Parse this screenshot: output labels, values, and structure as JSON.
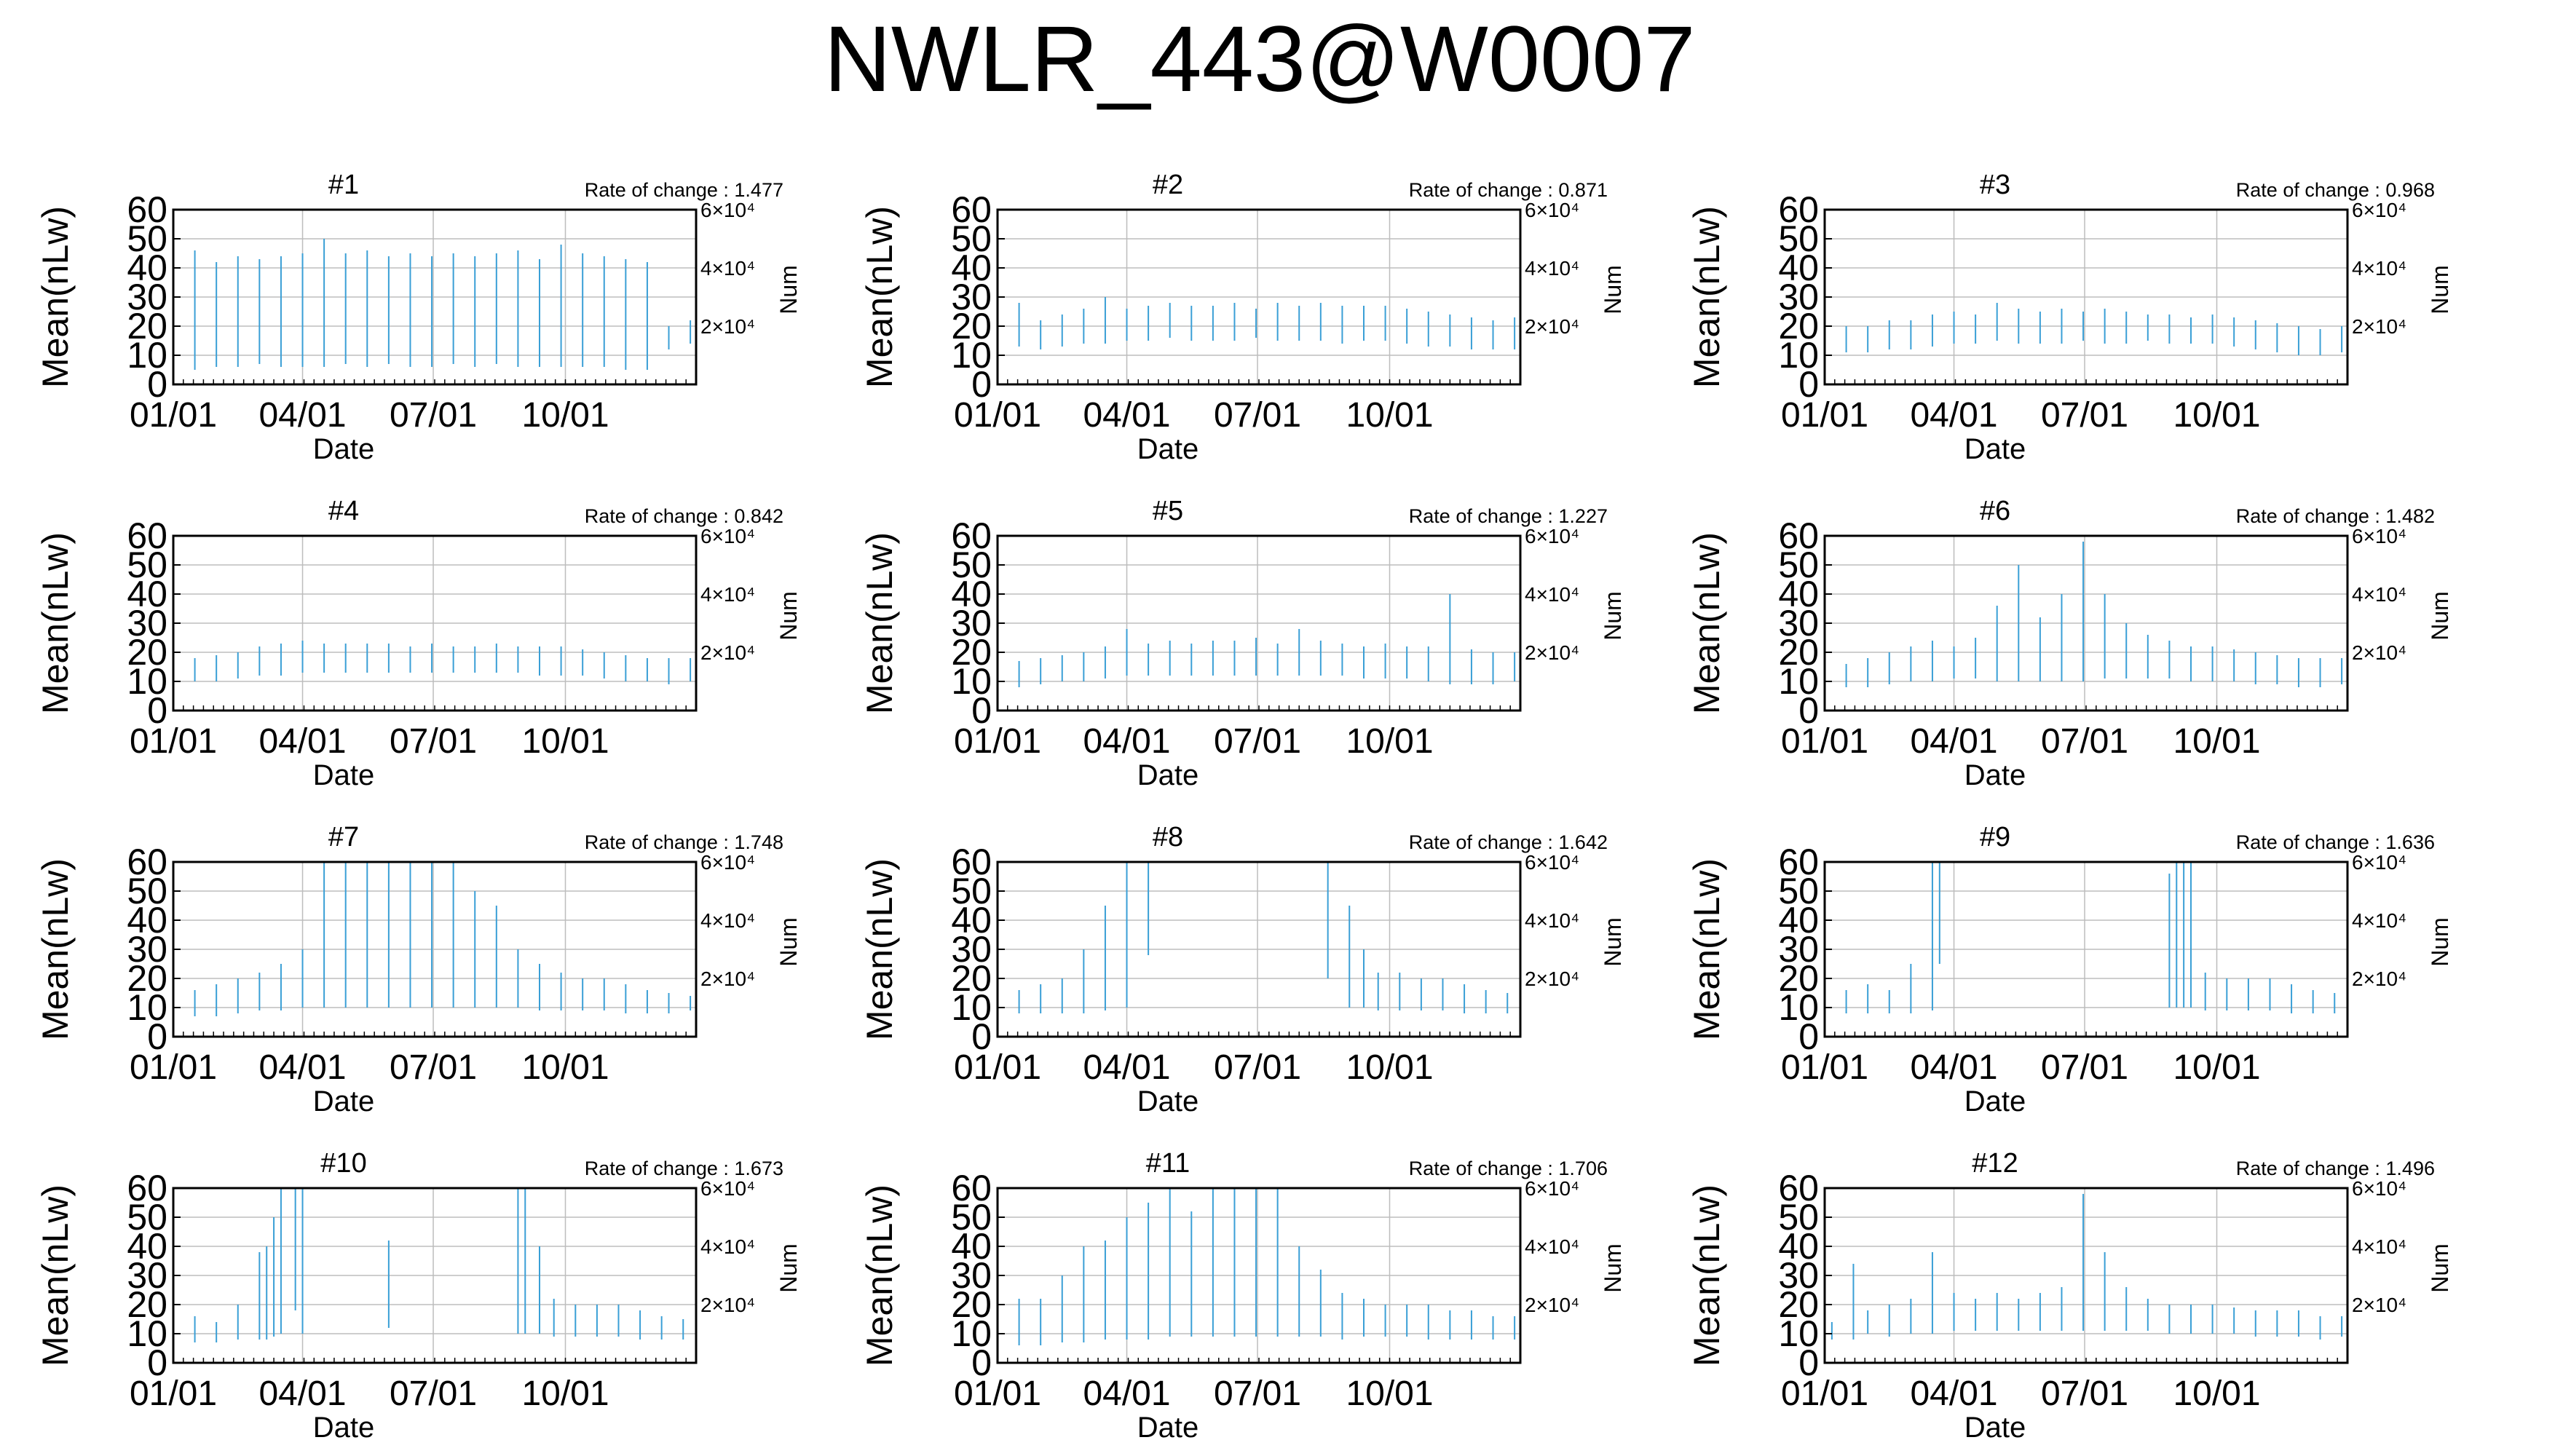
{
  "figure_title": "NWLR_443@W0007",
  "colors": {
    "series": "#3a9fd6",
    "grid": "#bdbdbd",
    "axis": "#000000"
  },
  "chart_data": [
    {
      "type": "bar",
      "title": "#1",
      "rate_label": "Rate of change : 1.477",
      "xlabel": "Date",
      "ylabel": "Mean(nLw)",
      "right_label": "Num",
      "ylim": [
        0,
        60
      ],
      "y_ticks": [
        "0",
        "10",
        "20",
        "30",
        "40",
        "50",
        "60"
      ],
      "x_ticks": [
        "01/01",
        "04/01",
        "07/01",
        "10/01"
      ],
      "right_ticks": [
        "2×10⁴",
        "4×10⁴",
        "6×10⁴"
      ],
      "grid": true,
      "days": [
        1,
        16,
        31,
        46,
        61,
        76,
        91,
        106,
        121,
        136,
        151,
        166,
        181,
        196,
        211,
        226,
        241,
        256,
        271,
        286,
        301,
        316,
        331,
        346,
        361
      ],
      "low": [
        5,
        5,
        6,
        6,
        7,
        6,
        6,
        6,
        7,
        6,
        7,
        6,
        6,
        7,
        6,
        7,
        6,
        6,
        6,
        6,
        6,
        5,
        5,
        12,
        14
      ],
      "high": [
        44,
        46,
        42,
        44,
        43,
        44,
        45,
        50,
        45,
        46,
        44,
        45,
        44,
        45,
        44,
        45,
        46,
        43,
        48,
        45,
        44,
        43,
        42,
        20,
        22
      ]
    },
    {
      "type": "bar",
      "title": "#2",
      "rate_label": "Rate of change : 0.871",
      "xlabel": "Date",
      "ylabel": "Mean(nLw)",
      "right_label": "Num",
      "ylim": [
        0,
        60
      ],
      "y_ticks": [
        "0",
        "10",
        "20",
        "30",
        "40",
        "50",
        "60"
      ],
      "x_ticks": [
        "01/01",
        "04/01",
        "07/01",
        "10/01"
      ],
      "right_ticks": [
        "2×10⁴",
        "4×10⁴",
        "6×10⁴"
      ],
      "grid": true,
      "days": [
        1,
        16,
        31,
        46,
        61,
        76,
        91,
        106,
        121,
        136,
        151,
        166,
        181,
        196,
        211,
        226,
        241,
        256,
        271,
        286,
        301,
        316,
        331,
        346,
        361
      ],
      "low": [
        12,
        13,
        12,
        13,
        14,
        14,
        15,
        15,
        16,
        15,
        15,
        15,
        16,
        15,
        15,
        15,
        14,
        15,
        15,
        14,
        13,
        13,
        12,
        12,
        12
      ],
      "high": [
        22,
        28,
        22,
        24,
        26,
        30,
        26,
        27,
        28,
        27,
        27,
        28,
        26,
        28,
        27,
        28,
        27,
        27,
        27,
        26,
        25,
        24,
        23,
        22,
        23
      ]
    },
    {
      "type": "bar",
      "title": "#3",
      "rate_label": "Rate of change : 0.968",
      "xlabel": "Date",
      "ylabel": "Mean(nLw)",
      "right_label": "Num",
      "ylim": [
        0,
        60
      ],
      "y_ticks": [
        "0",
        "10",
        "20",
        "30",
        "40",
        "50",
        "60"
      ],
      "x_ticks": [
        "01/01",
        "04/01",
        "07/01",
        "10/01"
      ],
      "right_ticks": [
        "2×10⁴",
        "4×10⁴",
        "6×10⁴"
      ],
      "grid": true,
      "days": [
        1,
        16,
        31,
        46,
        61,
        76,
        91,
        106,
        121,
        136,
        151,
        166,
        181,
        196,
        211,
        226,
        241,
        256,
        271,
        286,
        301,
        316,
        331,
        346,
        361
      ],
      "low": [
        10,
        11,
        11,
        12,
        12,
        13,
        14,
        14,
        15,
        14,
        14,
        14,
        15,
        14,
        14,
        15,
        14,
        14,
        14,
        13,
        12,
        11,
        10,
        10,
        11
      ],
      "high": [
        18,
        20,
        20,
        22,
        22,
        24,
        25,
        24,
        28,
        26,
        25,
        26,
        25,
        26,
        25,
        24,
        24,
        23,
        24,
        23,
        22,
        21,
        20,
        19,
        20
      ]
    },
    {
      "type": "bar",
      "title": "#4",
      "rate_label": "Rate of change : 0.842",
      "xlabel": "Date",
      "ylabel": "Mean(nLw)",
      "right_label": "Num",
      "ylim": [
        0,
        60
      ],
      "y_ticks": [
        "0",
        "10",
        "20",
        "30",
        "40",
        "50",
        "60"
      ],
      "x_ticks": [
        "01/01",
        "04/01",
        "07/01",
        "10/01"
      ],
      "right_ticks": [
        "2×10⁴",
        "4×10⁴",
        "6×10⁴"
      ],
      "grid": true,
      "days": [
        1,
        16,
        31,
        46,
        61,
        76,
        91,
        106,
        121,
        136,
        151,
        166,
        181,
        196,
        211,
        226,
        241,
        256,
        271,
        286,
        301,
        316,
        331,
        346,
        361
      ],
      "low": [
        9,
        10,
        10,
        11,
        12,
        12,
        13,
        13,
        13,
        13,
        13,
        13,
        13,
        13,
        13,
        13,
        13,
        12,
        12,
        12,
        11,
        10,
        10,
        9,
        10
      ],
      "high": [
        18,
        18,
        19,
        20,
        22,
        23,
        24,
        23,
        23,
        23,
        23,
        22,
        23,
        22,
        22,
        23,
        22,
        22,
        22,
        21,
        20,
        19,
        18,
        18,
        18
      ]
    },
    {
      "type": "bar",
      "title": "#5",
      "rate_label": "Rate of change : 1.227",
      "xlabel": "Date",
      "ylabel": "Mean(nLw)",
      "right_label": "Num",
      "ylim": [
        0,
        60
      ],
      "y_ticks": [
        "0",
        "10",
        "20",
        "30",
        "40",
        "50",
        "60"
      ],
      "x_ticks": [
        "01/01",
        "04/01",
        "07/01",
        "10/01"
      ],
      "right_ticks": [
        "2×10⁴",
        "4×10⁴",
        "6×10⁴"
      ],
      "grid": true,
      "days": [
        1,
        16,
        31,
        46,
        61,
        76,
        91,
        106,
        121,
        136,
        151,
        166,
        181,
        196,
        211,
        226,
        241,
        256,
        271,
        286,
        301,
        316,
        331,
        346,
        361
      ],
      "low": [
        8,
        8,
        9,
        10,
        10,
        11,
        12,
        12,
        12,
        12,
        12,
        12,
        12,
        12,
        12,
        12,
        12,
        11,
        11,
        11,
        10,
        9,
        9,
        9,
        10
      ],
      "high": [
        16,
        17,
        18,
        19,
        20,
        22,
        28,
        23,
        24,
        23,
        24,
        24,
        25,
        23,
        28,
        24,
        23,
        22,
        23,
        22,
        22,
        40,
        21,
        20,
        20
      ]
    },
    {
      "type": "bar",
      "title": "#6",
      "rate_label": "Rate of change : 1.482",
      "xlabel": "Date",
      "ylabel": "Mean(nLw)",
      "right_label": "Num",
      "ylim": [
        0,
        60
      ],
      "y_ticks": [
        "0",
        "10",
        "20",
        "30",
        "40",
        "50",
        "60"
      ],
      "x_ticks": [
        "01/01",
        "04/01",
        "07/01",
        "10/01"
      ],
      "right_ticks": [
        "2×10⁴",
        "4×10⁴",
        "6×10⁴"
      ],
      "grid": true,
      "days": [
        1,
        16,
        31,
        46,
        61,
        76,
        91,
        106,
        121,
        136,
        151,
        166,
        181,
        196,
        211,
        226,
        241,
        256,
        271,
        286,
        301,
        316,
        331,
        346,
        361
      ],
      "low": [
        8,
        8,
        8,
        9,
        10,
        10,
        11,
        11,
        10,
        10,
        10,
        10,
        10,
        11,
        11,
        11,
        11,
        10,
        10,
        10,
        9,
        9,
        8,
        8,
        9
      ],
      "high": [
        18,
        16,
        18,
        20,
        22,
        24,
        22,
        25,
        36,
        50,
        32,
        40,
        58,
        40,
        30,
        26,
        24,
        22,
        22,
        21,
        20,
        19,
        18,
        18,
        18
      ]
    },
    {
      "type": "bar",
      "title": "#7",
      "rate_label": "Rate of change : 1.748",
      "xlabel": "Date",
      "ylabel": "Mean(nLw)",
      "right_label": "Num",
      "ylim": [
        0,
        60
      ],
      "y_ticks": [
        "0",
        "10",
        "20",
        "30",
        "40",
        "50",
        "60"
      ],
      "x_ticks": [
        "01/01",
        "04/01",
        "07/01",
        "10/01"
      ],
      "right_ticks": [
        "2×10⁴",
        "4×10⁴",
        "6×10⁴"
      ],
      "grid": true,
      "days": [
        1,
        16,
        31,
        46,
        61,
        76,
        91,
        106,
        121,
        136,
        151,
        166,
        181,
        196,
        211,
        226,
        241,
        256,
        271,
        286,
        301,
        316,
        331,
        346,
        361
      ],
      "low": [
        8,
        7,
        7,
        8,
        9,
        9,
        10,
        10,
        10,
        10,
        10,
        10,
        10,
        10,
        10,
        10,
        10,
        9,
        9,
        9,
        9,
        8,
        8,
        8,
        9
      ],
      "high": [
        15,
        16,
        18,
        20,
        22,
        25,
        30,
        60,
        60,
        60,
        60,
        60,
        60,
        60,
        50,
        45,
        30,
        25,
        22,
        20,
        20,
        18,
        16,
        15,
        14
      ]
    },
    {
      "type": "bar",
      "title": "#8",
      "rate_label": "Rate of change : 1.642",
      "xlabel": "Date",
      "ylabel": "Mean(nLw)",
      "right_label": "Num",
      "ylim": [
        0,
        60
      ],
      "y_ticks": [
        "0",
        "10",
        "20",
        "30",
        "40",
        "50",
        "60"
      ],
      "x_ticks": [
        "01/01",
        "04/01",
        "07/01",
        "10/01"
      ],
      "right_ticks": [
        "2×10⁴",
        "4×10⁴",
        "6×10⁴"
      ],
      "grid": true,
      "days": [
        1,
        16,
        31,
        46,
        61,
        76,
        91,
        106,
        231,
        246,
        256,
        266,
        281,
        296,
        311,
        326,
        341,
        356
      ],
      "low": [
        8,
        8,
        8,
        8,
        8,
        9,
        10,
        28,
        20,
        10,
        10,
        9,
        9,
        9,
        9,
        8,
        8,
        8
      ],
      "high": [
        14,
        16,
        18,
        20,
        30,
        45,
        60,
        60,
        60,
        45,
        30,
        22,
        22,
        20,
        20,
        18,
        16,
        15
      ]
    },
    {
      "type": "bar",
      "title": "#9",
      "rate_label": "Rate of change : 1.636",
      "xlabel": "Date",
      "ylabel": "Mean(nLw)",
      "right_label": "Num",
      "ylim": [
        0,
        60
      ],
      "y_ticks": [
        "0",
        "10",
        "20",
        "30",
        "40",
        "50",
        "60"
      ],
      "x_ticks": [
        "01/01",
        "04/01",
        "07/01",
        "10/01"
      ],
      "right_ticks": [
        "2×10⁴",
        "4×10⁴",
        "6×10⁴"
      ],
      "grid": true,
      "days": [
        1,
        16,
        31,
        46,
        61,
        76,
        81,
        241,
        246,
        251,
        256,
        266,
        281,
        296,
        311,
        326,
        341,
        356
      ],
      "low": [
        8,
        8,
        8,
        8,
        8,
        9,
        25,
        10,
        10,
        10,
        10,
        9,
        9,
        9,
        9,
        8,
        8,
        8
      ],
      "high": [
        14,
        16,
        18,
        16,
        25,
        60,
        60,
        56,
        60,
        60,
        60,
        22,
        20,
        20,
        20,
        18,
        16,
        15
      ]
    },
    {
      "type": "bar",
      "title": "#10",
      "rate_label": "Rate of change : 1.673",
      "xlabel": "Date",
      "ylabel": "Mean(nLw)",
      "right_label": "Num",
      "ylim": [
        0,
        60
      ],
      "y_ticks": [
        "0",
        "10",
        "20",
        "30",
        "40",
        "50",
        "60"
      ],
      "x_ticks": [
        "01/01",
        "04/01",
        "07/01",
        "10/01"
      ],
      "right_ticks": [
        "2×10⁴",
        "4×10⁴",
        "6×10⁴"
      ],
      "grid": true,
      "days": [
        1,
        16,
        31,
        46,
        61,
        66,
        71,
        76,
        86,
        91,
        151,
        241,
        246,
        256,
        266,
        281,
        296,
        311,
        326,
        341,
        356
      ],
      "low": [
        7,
        7,
        7,
        8,
        8,
        8,
        9,
        10,
        18,
        10,
        12,
        10,
        10,
        10,
        9,
        9,
        9,
        9,
        8,
        8,
        8
      ],
      "high": [
        12,
        16,
        14,
        20,
        38,
        40,
        50,
        60,
        60,
        60,
        42,
        60,
        60,
        40,
        22,
        20,
        20,
        20,
        18,
        16,
        15
      ]
    },
    {
      "type": "bar",
      "title": "#11",
      "rate_label": "Rate of change : 1.706",
      "xlabel": "Date",
      "ylabel": "Mean(nLw)",
      "right_label": "Num",
      "ylim": [
        0,
        60
      ],
      "y_ticks": [
        "0",
        "10",
        "20",
        "30",
        "40",
        "50",
        "60"
      ],
      "x_ticks": [
        "01/01",
        "04/01",
        "07/01",
        "10/01"
      ],
      "right_ticks": [
        "2×10⁴",
        "4×10⁴",
        "6×10⁴"
      ],
      "grid": true,
      "days": [
        1,
        16,
        31,
        46,
        61,
        76,
        91,
        106,
        121,
        136,
        151,
        166,
        181,
        196,
        211,
        226,
        241,
        256,
        271,
        286,
        301,
        316,
        331,
        346,
        361
      ],
      "low": [
        6,
        6,
        6,
        7,
        7,
        8,
        8,
        8,
        9,
        9,
        9,
        9,
        9,
        9,
        9,
        9,
        8,
        9,
        9,
        9,
        8,
        8,
        8,
        8,
        8
      ],
      "high": [
        18,
        22,
        22,
        30,
        40,
        42,
        50,
        55,
        60,
        52,
        60,
        60,
        60,
        60,
        40,
        32,
        24,
        22,
        20,
        20,
        20,
        18,
        18,
        16,
        16
      ]
    },
    {
      "type": "bar",
      "title": "#12",
      "rate_label": "Rate of change : 1.496",
      "xlabel": "Date",
      "ylabel": "Mean(nLw)",
      "right_label": "Num",
      "ylim": [
        0,
        60
      ],
      "y_ticks": [
        "0",
        "10",
        "20",
        "30",
        "40",
        "50",
        "60"
      ],
      "x_ticks": [
        "01/01",
        "04/01",
        "07/01",
        "10/01"
      ],
      "right_ticks": [
        "2×10⁴",
        "4×10⁴",
        "6×10⁴"
      ],
      "grid": true,
      "days": [
        6,
        21,
        31,
        46,
        61,
        76,
        91,
        106,
        121,
        136,
        151,
        166,
        181,
        196,
        211,
        226,
        241,
        256,
        271,
        286,
        301,
        316,
        331,
        346,
        361
      ],
      "low": [
        8,
        8,
        10,
        9,
        10,
        10,
        11,
        11,
        11,
        11,
        11,
        11,
        11,
        11,
        11,
        11,
        10,
        10,
        10,
        10,
        9,
        9,
        9,
        8,
        9
      ],
      "high": [
        14,
        34,
        18,
        20,
        22,
        38,
        24,
        22,
        24,
        22,
        24,
        26,
        58,
        38,
        26,
        22,
        20,
        20,
        20,
        19,
        18,
        18,
        18,
        16,
        16
      ]
    }
  ]
}
